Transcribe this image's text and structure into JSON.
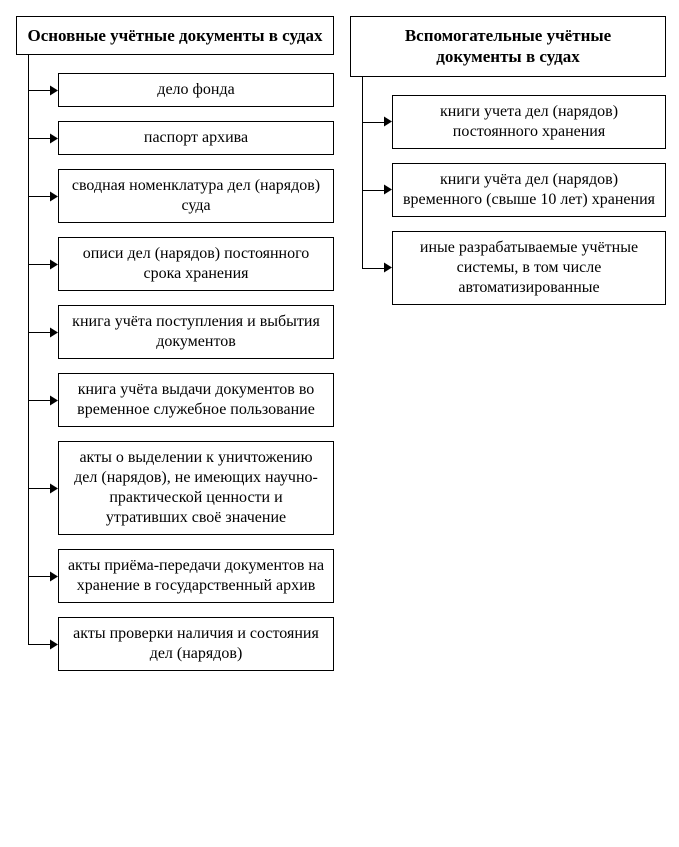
{
  "diagram": {
    "type": "tree",
    "background_color": "#ffffff",
    "border_color": "#000000",
    "border_width": 1.5,
    "font_family": "Times New Roman",
    "header_fontsize": 17,
    "item_fontsize": 16,
    "arrow_size": 8,
    "left": {
      "header": "Основные учётные документы в судах",
      "items": [
        "дело фонда",
        "паспорт архива",
        "сводная номенклатура дел (нарядов) суда",
        "описи дел (нарядов) постоянного срока хранения",
        "книга учёта поступления и выбытия документов",
        "книга учёта выдачи документов во временное служебное пользование",
        "акты о выделении к уничтожению дел (нарядов), не имеющих научно-практической ценности и утративших своё значение",
        "акты приёма-передачи документов на хранение в государственный архив",
        "акты проверки наличия и состояния дел (нарядов)"
      ]
    },
    "right": {
      "header": "Вспомогательные учётные документы в судах",
      "items": [
        "книги учета дел (нарядов) постоянного хранения",
        "книги учёта дел (нарядов) временного (свыше 10 лет) хранения",
        "иные разрабатываемые учётные системы, в том числе автоматизированные"
      ]
    }
  }
}
